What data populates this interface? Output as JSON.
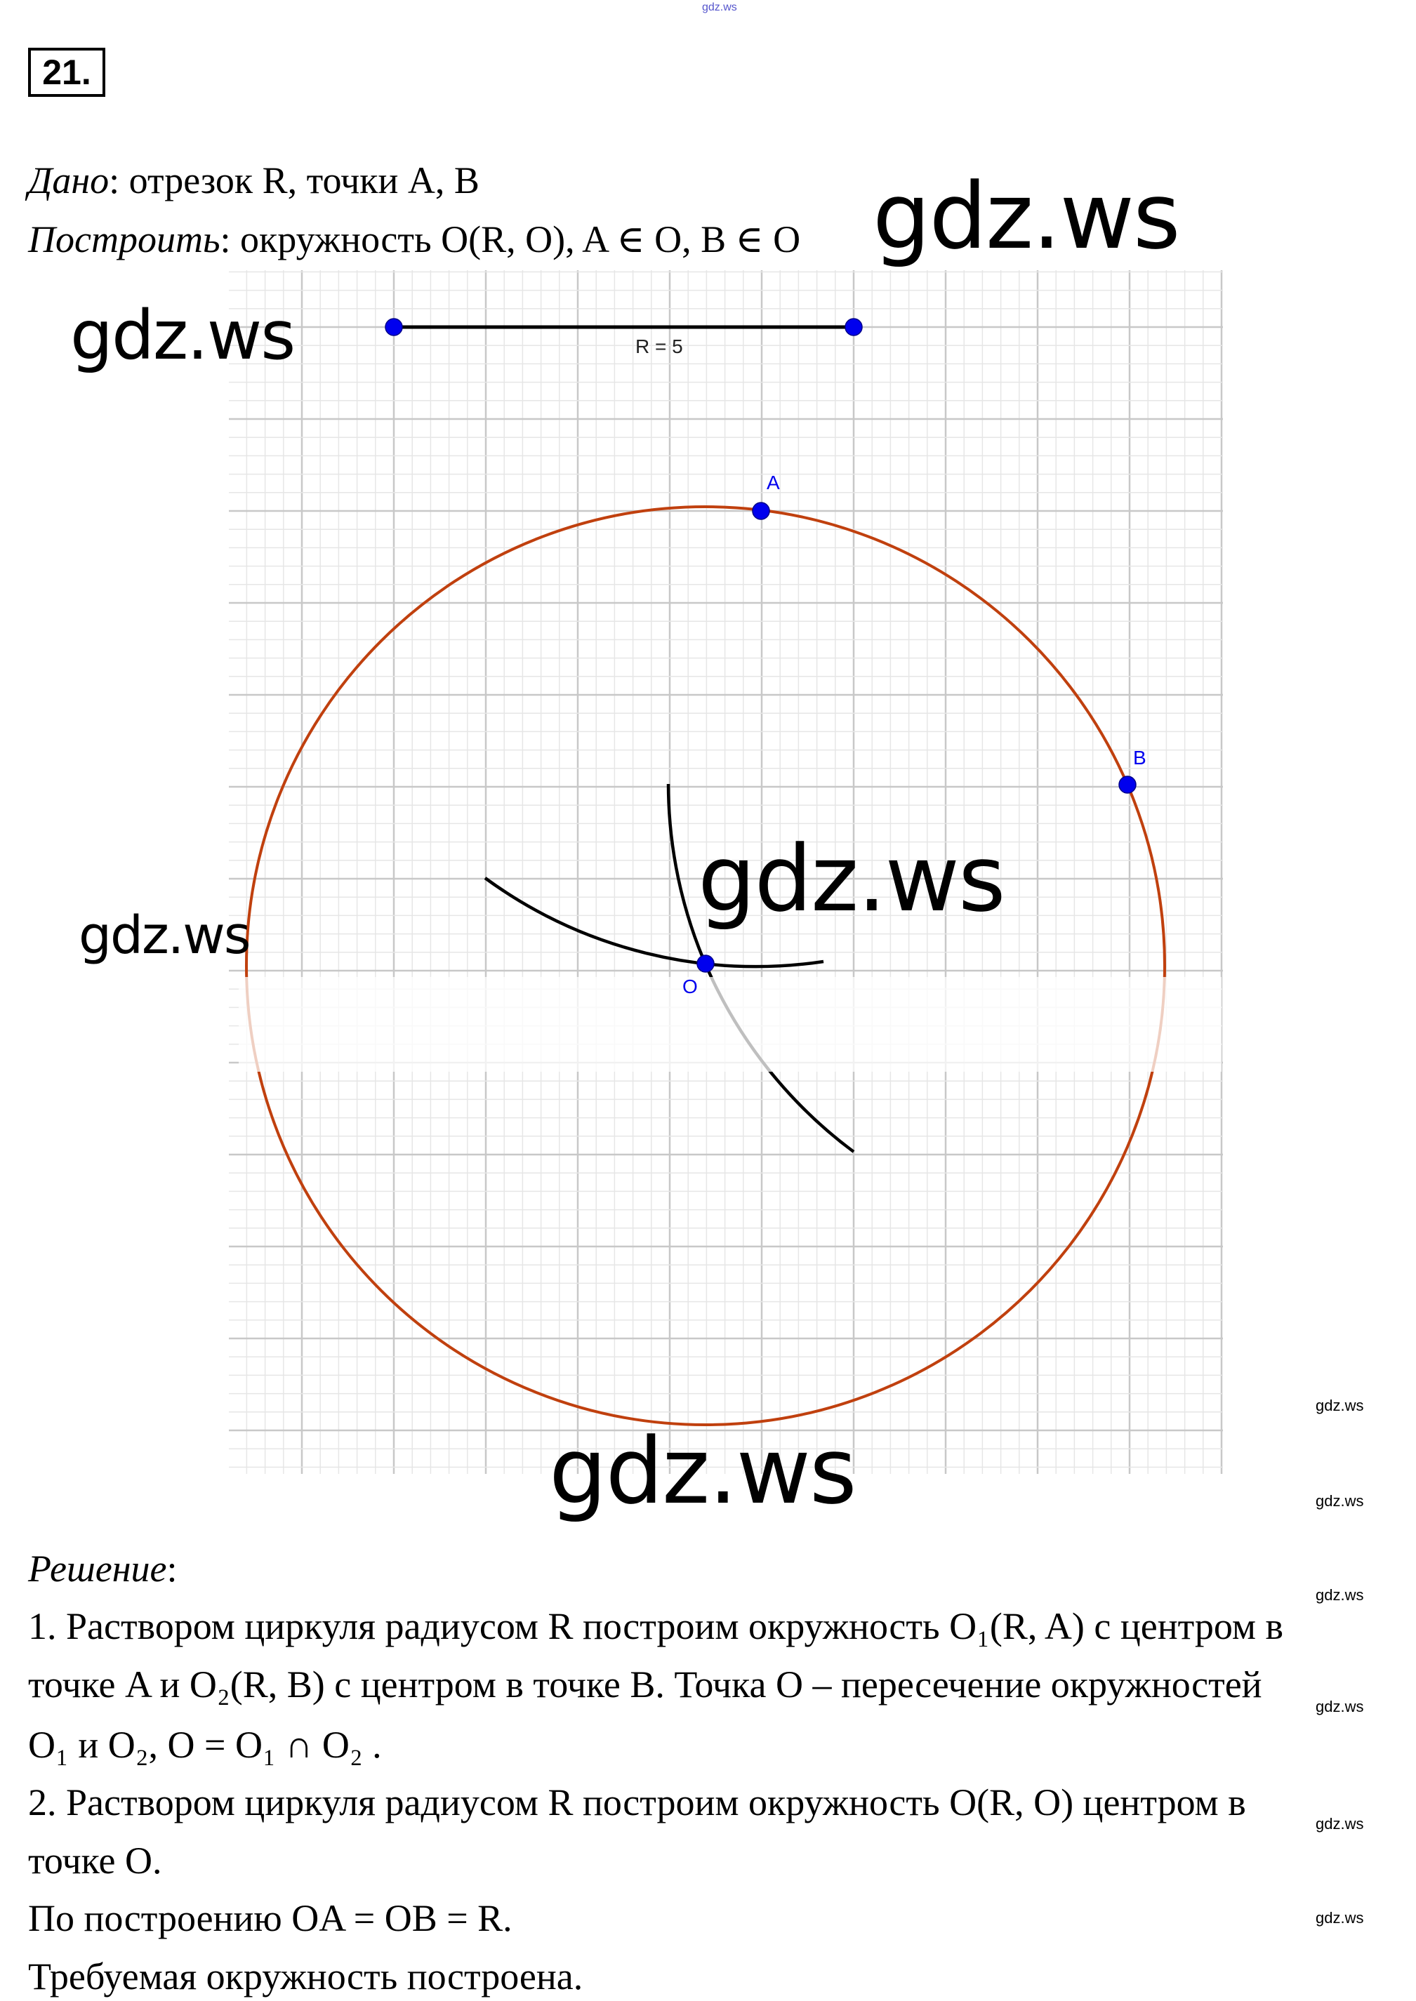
{
  "problem_number": "21.",
  "given": {
    "label": "Дано",
    "text": ": отрезок R, точки A, B"
  },
  "construct": {
    "label": "Построить",
    "text": ": окружность  O(R, O), A ∈ O, B ∈ O"
  },
  "figure": {
    "segment_label": "R = 5",
    "point_labels": {
      "A": "A",
      "B": "B",
      "O": "O"
    },
    "colors": {
      "circle": "#c0400e",
      "points": "#0000ee",
      "arcs": "#000000",
      "grid_major": "#c8c8c8",
      "grid_minor": "#e6e6e6",
      "labels": "#0000ee"
    }
  },
  "solution": {
    "label": "Решение",
    "lines": [
      "1. Раствором циркуля радиусом R построим окружность O₁(R, A) с центром в",
      "точке A и  O₂(R, B) с центром в точке B. Точка O – пересечение окружностей",
      "O₁ и O₂,  O = O₁ ∩ O₂ .",
      "2. Раствором циркуля радиусом R построим окружность O(R, O)  центром в",
      "точке O.",
      "По построению OA = OB = R.",
      "Требуемая окружность построена."
    ]
  },
  "watermarks": {
    "large": "gdz.ws",
    "small": "gdz.ws",
    "top": "gdz.ws"
  }
}
